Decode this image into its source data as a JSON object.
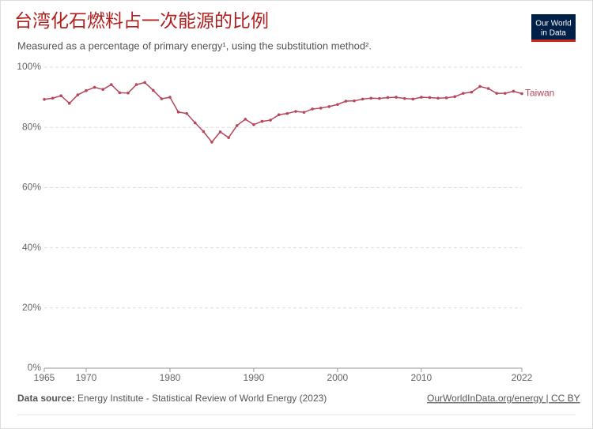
{
  "chart_data": {
    "type": "line",
    "title": "台湾化石燃料占一次能源的比例",
    "subtitle": "Measured as a percentage of primary energy¹, using the substitution method².",
    "x": [
      1965,
      1966,
      1967,
      1968,
      1969,
      1970,
      1971,
      1972,
      1973,
      1974,
      1975,
      1976,
      1977,
      1978,
      1979,
      1980,
      1981,
      1982,
      1983,
      1984,
      1985,
      1986,
      1987,
      1988,
      1989,
      1990,
      1991,
      1992,
      1993,
      1994,
      1995,
      1996,
      1997,
      1998,
      1999,
      2000,
      2001,
      2002,
      2003,
      2004,
      2005,
      2006,
      2007,
      2008,
      2009,
      2010,
      2011,
      2012,
      2013,
      2014,
      2015,
      2016,
      2017,
      2018,
      2019,
      2020,
      2021,
      2022
    ],
    "series": [
      {
        "name": "Taiwan",
        "color": "#b8455a",
        "values": [
          89.3,
          89.7,
          90.5,
          88.0,
          90.8,
          92.2,
          93.3,
          92.6,
          94.2,
          91.5,
          91.4,
          94.2,
          94.9,
          92.3,
          89.5,
          90.0,
          85.1,
          84.6,
          81.5,
          78.6,
          75.1,
          78.5,
          76.6,
          80.6,
          82.7,
          80.9,
          82.0,
          82.4,
          84.2,
          84.6,
          85.3,
          85.0,
          86.1,
          86.4,
          86.9,
          87.6,
          88.7,
          88.8,
          89.4,
          89.7,
          89.6,
          89.9,
          90.0,
          89.6,
          89.4,
          90.0,
          89.9,
          89.7,
          89.8,
          90.2,
          91.3,
          91.7,
          93.6,
          92.9,
          91.3,
          91.3,
          92.0,
          91.2
        ]
      }
    ],
    "xlim": [
      1965,
      2022
    ],
    "xticks": [
      1965,
      1970,
      1980,
      1990,
      2000,
      2010,
      2022
    ],
    "ylim": [
      0,
      100
    ],
    "yticks": [
      {
        "value": 0,
        "label": "0%"
      },
      {
        "value": 20,
        "label": "20%"
      },
      {
        "value": 40,
        "label": "40%"
      },
      {
        "value": 60,
        "label": "60%"
      },
      {
        "value": 80,
        "label": "80%"
      },
      {
        "value": 100,
        "label": "100%"
      }
    ],
    "grid": true,
    "source_label": "Data source:",
    "source": "Energy Institute - Statistical Review of World Energy (2023)",
    "link": "OurWorldInData.org/energy | CC BY",
    "logo": [
      "Our World",
      "in Data"
    ]
  }
}
